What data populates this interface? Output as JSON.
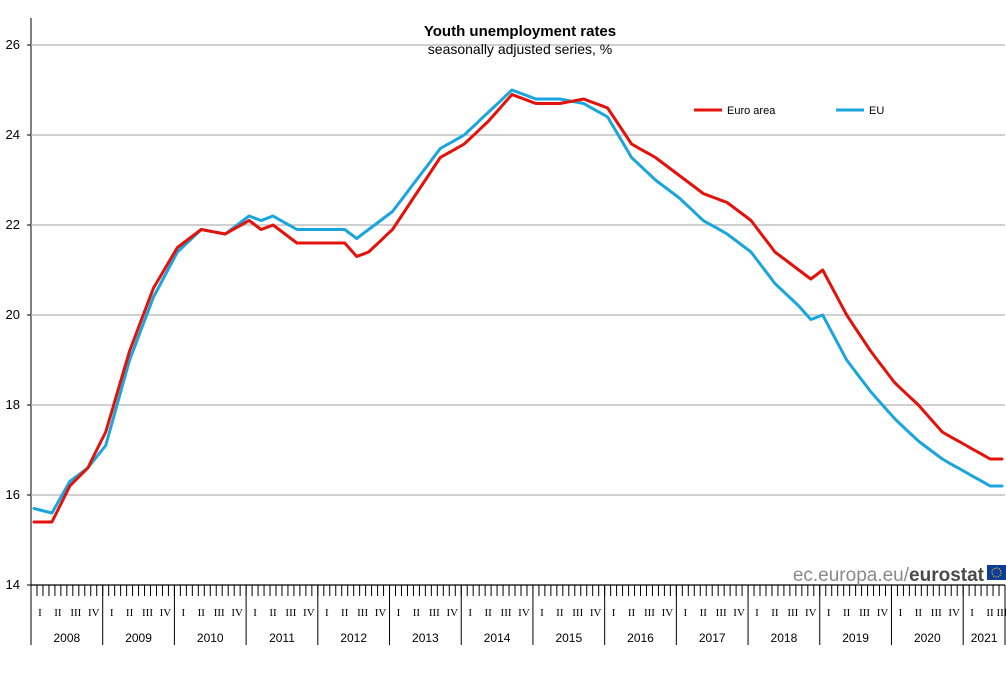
{
  "chart_data": {
    "type": "line",
    "title": "Youth unemployment rates",
    "subtitle": "seasonally adjusted series, %",
    "xlabel": "",
    "ylabel": "",
    "ylim": [
      14,
      26.6
    ],
    "y_ticks": [
      "14",
      "16",
      "18",
      "20",
      "22",
      "24",
      "26"
    ],
    "grid": true,
    "legend_position": "top-right",
    "quarter_labels": [
      "I",
      "II",
      "III",
      "IV"
    ],
    "years": [
      "2008",
      "2009",
      "2010",
      "2011",
      "2012",
      "2013",
      "2014",
      "2015",
      "2016",
      "2017",
      "2018",
      "2019",
      "2020",
      "2021"
    ],
    "x_start": "2008-01",
    "months": 163,
    "series": [
      {
        "name": "Euro area",
        "color": "#e3120b",
        "anchors": [
          [
            0,
            15.4
          ],
          [
            3,
            15.4
          ],
          [
            6,
            16.2
          ],
          [
            9,
            16.6
          ],
          [
            12,
            17.4
          ],
          [
            16,
            19.2
          ],
          [
            20,
            20.6
          ],
          [
            24,
            21.5
          ],
          [
            28,
            21.9
          ],
          [
            32,
            21.8
          ],
          [
            36,
            22.1
          ],
          [
            38,
            21.9
          ],
          [
            40,
            22.0
          ],
          [
            44,
            21.6
          ],
          [
            48,
            21.6
          ],
          [
            52,
            21.6
          ],
          [
            54,
            21.3
          ],
          [
            56,
            21.4
          ],
          [
            60,
            21.9
          ],
          [
            64,
            22.7
          ],
          [
            68,
            23.5
          ],
          [
            72,
            23.8
          ],
          [
            76,
            24.3
          ],
          [
            80,
            24.9
          ],
          [
            84,
            24.7
          ],
          [
            88,
            24.7
          ],
          [
            92,
            24.8
          ],
          [
            96,
            24.6
          ],
          [
            100,
            23.8
          ],
          [
            104,
            23.5
          ],
          [
            108,
            23.1
          ],
          [
            112,
            22.7
          ],
          [
            116,
            22.5
          ],
          [
            120,
            22.1
          ],
          [
            124,
            21.4
          ],
          [
            128,
            21.0
          ],
          [
            130,
            20.8
          ],
          [
            132,
            21.0
          ],
          [
            136,
            20.0
          ],
          [
            140,
            19.2
          ],
          [
            144,
            18.5
          ],
          [
            148,
            18.0
          ],
          [
            152,
            17.4
          ],
          [
            156,
            17.1
          ],
          [
            160,
            16.8
          ]
        ]
      },
      {
        "name": "EU",
        "color": "#1aa6dc",
        "anchors": [
          [
            0,
            15.7
          ],
          [
            3,
            15.6
          ],
          [
            6,
            16.3
          ],
          [
            9,
            16.6
          ],
          [
            12,
            17.1
          ],
          [
            16,
            19.0
          ],
          [
            20,
            20.4
          ],
          [
            24,
            21.4
          ],
          [
            28,
            21.9
          ],
          [
            32,
            21.8
          ],
          [
            36,
            22.2
          ],
          [
            38,
            22.1
          ],
          [
            40,
            22.2
          ],
          [
            44,
            21.9
          ],
          [
            48,
            21.9
          ],
          [
            52,
            21.9
          ],
          [
            54,
            21.7
          ],
          [
            56,
            21.9
          ],
          [
            60,
            22.3
          ],
          [
            64,
            23.0
          ],
          [
            68,
            23.7
          ],
          [
            72,
            24.0
          ],
          [
            76,
            24.5
          ],
          [
            80,
            25.0
          ],
          [
            84,
            24.8
          ],
          [
            88,
            24.8
          ],
          [
            92,
            24.7
          ],
          [
            96,
            24.4
          ],
          [
            100,
            23.5
          ],
          [
            104,
            23.0
          ],
          [
            108,
            22.6
          ],
          [
            112,
            22.1
          ],
          [
            116,
            21.8
          ],
          [
            120,
            21.4
          ],
          [
            124,
            20.7
          ],
          [
            128,
            20.2
          ],
          [
            130,
            19.9
          ],
          [
            132,
            20.0
          ],
          [
            136,
            19.0
          ],
          [
            140,
            18.3
          ],
          [
            144,
            17.7
          ],
          [
            148,
            17.2
          ],
          [
            152,
            16.8
          ],
          [
            156,
            16.5
          ],
          [
            160,
            16.2
          ]
        ]
      }
    ]
  },
  "watermark": {
    "domain": "ec.europa.eu/",
    "brand": "eurostat"
  }
}
